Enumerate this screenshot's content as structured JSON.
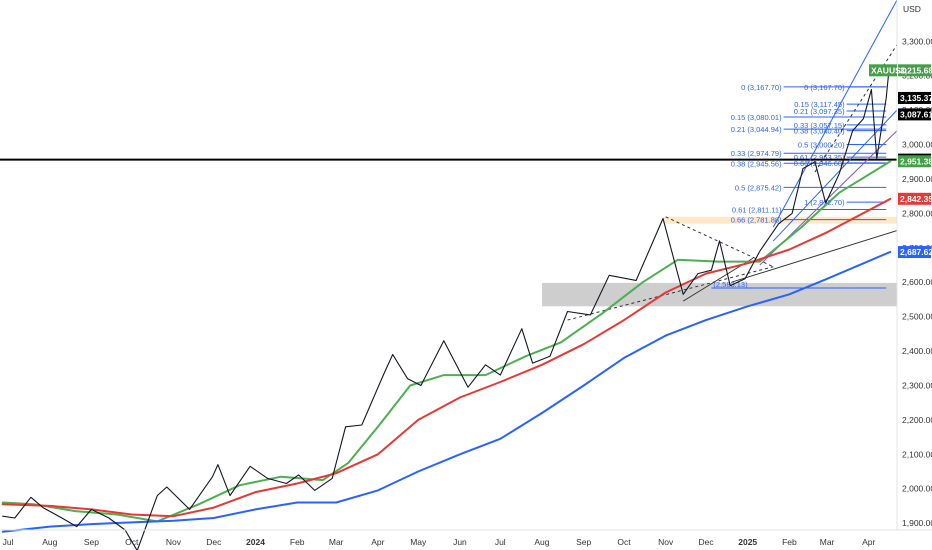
{
  "chart_data": {
    "type": "line",
    "title": "",
    "currency_label": "USD",
    "ylim": [
      1880,
      3420
    ],
    "yticks": [
      1900,
      2000,
      2100,
      2200,
      2300,
      2400,
      2500,
      2600,
      2700,
      2800,
      2900,
      3000,
      3100,
      3200,
      3300
    ],
    "ytick_labels": [
      "1,900.00",
      "2,000.00",
      "2,100.00",
      "2,200.00",
      "2,300.00",
      "2,400.00",
      "2,500.00",
      "2,600.00",
      "2,700.00",
      "2,800.00",
      "2,900.00",
      "3,000.00",
      "3,100.00",
      "3,200.00",
      "3,300.00"
    ],
    "xlim": [
      "2023-06-25",
      "2025-04-22"
    ],
    "xticks": [
      {
        "date": "2023-07-01",
        "label": "Jul",
        "bold": false
      },
      {
        "date": "2023-08-01",
        "label": "Aug",
        "bold": false
      },
      {
        "date": "2023-09-01",
        "label": "Sep",
        "bold": false
      },
      {
        "date": "2023-10-01",
        "label": "Oct",
        "bold": false
      },
      {
        "date": "2023-11-01",
        "label": "Nov",
        "bold": false
      },
      {
        "date": "2023-12-01",
        "label": "Dec",
        "bold": false
      },
      {
        "date": "2024-01-01",
        "label": "2024",
        "bold": true
      },
      {
        "date": "2024-02-01",
        "label": "Feb",
        "bold": false
      },
      {
        "date": "2024-03-01",
        "label": "Mar",
        "bold": false
      },
      {
        "date": "2024-04-01",
        "label": "Apr",
        "bold": false
      },
      {
        "date": "2024-05-01",
        "label": "May",
        "bold": false
      },
      {
        "date": "2024-06-01",
        "label": "Jun",
        "bold": false
      },
      {
        "date": "2024-07-01",
        "label": "Jul",
        "bold": false
      },
      {
        "date": "2024-08-01",
        "label": "Aug",
        "bold": false
      },
      {
        "date": "2024-09-01",
        "label": "Sep",
        "bold": false
      },
      {
        "date": "2024-10-01",
        "label": "Oct",
        "bold": false
      },
      {
        "date": "2024-11-01",
        "label": "Nov",
        "bold": false
      },
      {
        "date": "2024-12-01",
        "label": "Dec",
        "bold": false
      },
      {
        "date": "2025-01-01",
        "label": "2025",
        "bold": true
      },
      {
        "date": "2025-02-01",
        "label": "Feb",
        "bold": false
      },
      {
        "date": "2025-03-01",
        "label": "Mar",
        "bold": false
      },
      {
        "date": "2025-04-01",
        "label": "Apr",
        "bold": false
      }
    ],
    "grid": false,
    "series": [
      {
        "name": "",
        "kind": "price",
        "color": "#131722",
        "points": [
          [
            "2023-06-27",
            1920
          ],
          [
            "2023-07-06",
            1915
          ],
          [
            "2023-07-18",
            1975
          ],
          [
            "2023-07-27",
            1945
          ],
          [
            "2023-08-10",
            1915
          ],
          [
            "2023-08-21",
            1890
          ],
          [
            "2023-09-01",
            1940
          ],
          [
            "2023-09-14",
            1915
          ],
          [
            "2023-09-26",
            1880
          ],
          [
            "2023-10-05",
            1820
          ],
          [
            "2023-10-20",
            1980
          ],
          [
            "2023-10-27",
            2005
          ],
          [
            "2023-11-13",
            1940
          ],
          [
            "2023-11-30",
            2035
          ],
          [
            "2023-12-04",
            2070
          ],
          [
            "2023-12-13",
            1980
          ],
          [
            "2023-12-28",
            2065
          ],
          [
            "2024-01-10",
            2030
          ],
          [
            "2024-01-24",
            2015
          ],
          [
            "2024-02-02",
            2040
          ],
          [
            "2024-02-14",
            1995
          ],
          [
            "2024-02-27",
            2030
          ],
          [
            "2024-03-08",
            2180
          ],
          [
            "2024-03-20",
            2185
          ],
          [
            "2024-04-05",
            2330
          ],
          [
            "2024-04-12",
            2390
          ],
          [
            "2024-04-23",
            2320
          ],
          [
            "2024-05-03",
            2300
          ],
          [
            "2024-05-20",
            2430
          ],
          [
            "2024-06-07",
            2295
          ],
          [
            "2024-06-20",
            2360
          ],
          [
            "2024-07-01",
            2330
          ],
          [
            "2024-07-17",
            2465
          ],
          [
            "2024-07-25",
            2365
          ],
          [
            "2024-08-07",
            2385
          ],
          [
            "2024-08-20",
            2515
          ],
          [
            "2024-09-06",
            2505
          ],
          [
            "2024-09-20",
            2620
          ],
          [
            "2024-10-10",
            2605
          ],
          [
            "2024-10-30",
            2785
          ],
          [
            "2024-11-14",
            2565
          ],
          [
            "2024-11-25",
            2625
          ],
          [
            "2024-12-05",
            2635
          ],
          [
            "2024-12-11",
            2720
          ],
          [
            "2024-12-19",
            2590
          ],
          [
            "2024-12-30",
            2610
          ],
          [
            "2025-01-10",
            2690
          ],
          [
            "2025-01-24",
            2770
          ],
          [
            "2025-02-03",
            2800
          ],
          [
            "2025-02-11",
            2930
          ],
          [
            "2025-02-20",
            2950
          ],
          [
            "2025-02-28",
            2830
          ],
          [
            "2025-03-10",
            2915
          ],
          [
            "2025-03-20",
            3040
          ],
          [
            "2025-03-28",
            3075
          ],
          [
            "2025-04-03",
            3160
          ],
          [
            "2025-04-07",
            2960
          ],
          [
            "2025-04-14",
            3135
          ],
          [
            "2025-04-16",
            3215
          ]
        ]
      },
      {
        "name": "",
        "kind": "ma",
        "color": "#4caf50",
        "points": [
          [
            "2023-06-27",
            1960
          ],
          [
            "2023-07-20",
            1955
          ],
          [
            "2023-08-20",
            1935
          ],
          [
            "2023-09-20",
            1925
          ],
          [
            "2023-10-20",
            1905
          ],
          [
            "2023-11-20",
            1955
          ],
          [
            "2023-12-20",
            2010
          ],
          [
            "2024-01-20",
            2035
          ],
          [
            "2024-02-20",
            2025
          ],
          [
            "2024-03-10",
            2075
          ],
          [
            "2024-04-01",
            2180
          ],
          [
            "2024-04-25",
            2300
          ],
          [
            "2024-05-20",
            2330
          ],
          [
            "2024-06-20",
            2330
          ],
          [
            "2024-07-20",
            2385
          ],
          [
            "2024-08-15",
            2425
          ],
          [
            "2024-09-15",
            2510
          ],
          [
            "2024-10-15",
            2600
          ],
          [
            "2024-11-10",
            2665
          ],
          [
            "2024-12-10",
            2660
          ],
          [
            "2025-01-10",
            2660
          ],
          [
            "2025-02-10",
            2760
          ],
          [
            "2025-03-10",
            2860
          ],
          [
            "2025-04-17",
            2951
          ]
        ]
      },
      {
        "name": "",
        "kind": "ma",
        "color": "#e53935",
        "points": [
          [
            "2023-06-27",
            1955
          ],
          [
            "2023-08-01",
            1950
          ],
          [
            "2023-09-01",
            1940
          ],
          [
            "2023-10-01",
            1925
          ],
          [
            "2023-11-01",
            1920
          ],
          [
            "2023-12-01",
            1945
          ],
          [
            "2024-01-01",
            1990
          ],
          [
            "2024-02-01",
            2015
          ],
          [
            "2024-03-01",
            2045
          ],
          [
            "2024-04-01",
            2100
          ],
          [
            "2024-05-01",
            2200
          ],
          [
            "2024-06-01",
            2265
          ],
          [
            "2024-07-01",
            2310
          ],
          [
            "2024-08-01",
            2360
          ],
          [
            "2024-09-01",
            2420
          ],
          [
            "2024-10-01",
            2490
          ],
          [
            "2024-11-01",
            2570
          ],
          [
            "2024-12-01",
            2625
          ],
          [
            "2025-01-01",
            2655
          ],
          [
            "2025-02-01",
            2695
          ],
          [
            "2025-03-01",
            2745
          ],
          [
            "2025-04-17",
            2842
          ]
        ]
      },
      {
        "name": "",
        "kind": "ma",
        "color": "#2962ff",
        "points": [
          [
            "2023-06-27",
            1875
          ],
          [
            "2023-08-01",
            1890
          ],
          [
            "2023-09-01",
            1897
          ],
          [
            "2023-10-01",
            1902
          ],
          [
            "2023-11-01",
            1907
          ],
          [
            "2023-12-01",
            1915
          ],
          [
            "2024-01-01",
            1940
          ],
          [
            "2024-02-01",
            1960
          ],
          [
            "2024-03-01",
            1960
          ],
          [
            "2024-04-01",
            1995
          ],
          [
            "2024-05-01",
            2050
          ],
          [
            "2024-06-01",
            2100
          ],
          [
            "2024-07-01",
            2145
          ],
          [
            "2024-08-01",
            2220
          ],
          [
            "2024-09-01",
            2300
          ],
          [
            "2024-10-01",
            2380
          ],
          [
            "2024-11-01",
            2445
          ],
          [
            "2024-12-01",
            2490
          ],
          [
            "2025-01-01",
            2530
          ],
          [
            "2025-02-01",
            2565
          ],
          [
            "2025-03-01",
            2610
          ],
          [
            "2025-04-17",
            2688
          ]
        ]
      }
    ],
    "price_badges": [
      {
        "label": "XAUUSD",
        "value": "3,215.68",
        "color": "#43a047"
      },
      {
        "value": "3,135.37",
        "color": "#000000"
      },
      {
        "value": "3,087.61",
        "color": "#000000"
      },
      {
        "value": "2,956.19",
        "color": "#000000"
      },
      {
        "value": "2,951.38",
        "color": "#43a047"
      },
      {
        "value": "2,842.35",
        "color": "#e53935"
      },
      {
        "value": "2,687.62",
        "color": "#2962ff"
      }
    ],
    "horizontal_line": {
      "price": 2956.19,
      "color": "#000000"
    },
    "support_zones": [
      {
        "from": 2530,
        "to": 2598,
        "color": "#bdbdbd"
      },
      {
        "from": 2770,
        "to": 2790,
        "color": "#ffe0b2"
      }
    ],
    "fib_levels_1": {
      "x_from": "2024-12-20",
      "x_to": "2025-04-14",
      "levels": [
        {
          "label": "0 (3,167.70)",
          "price": 3167.7
        },
        {
          "label": "0.15 (3,080.01)",
          "price": 3080.01
        },
        {
          "label": "0.21 (3,044.94)",
          "price": 3044.94
        },
        {
          "label": "0.33 (2,974.79)",
          "price": 2974.79
        },
        {
          "label": "0.38 (2,945.56)",
          "price": 2945.56
        },
        {
          "label": "0.5 (2,875.42)",
          "price": 2875.42
        },
        {
          "label": "0.61 (2,811.11)",
          "price": 2811.11
        },
        {
          "label": "0.66 (2,781.88)",
          "price": 2781.88
        }
      ]
    },
    "fib_levels_2": {
      "x_from": "2025-03-20",
      "x_to": "2025-04-14",
      "levels": [
        {
          "label": "0 (3,167.70)",
          "price": 3167.7
        },
        {
          "label": "0.15 (3,117.45)",
          "price": 3117.45
        },
        {
          "label": "0.21 (3,097.35)",
          "price": 3097.35
        },
        {
          "label": "0.33 (3,057.15)",
          "price": 3057.15
        },
        {
          "label": "0.38 (3,040.40)",
          "price": 3040.4
        },
        {
          "label": "0.5 (3,000.20)",
          "price": 3000.2
        },
        {
          "label": "0.61 (2,963.35)",
          "price": 2963.35
        },
        {
          "label": "0.66 (2,946.60)",
          "price": 2946.6
        },
        {
          "label": "1 (2,832.70)",
          "price": 2832.7
        }
      ]
    },
    "fib_level_3": {
      "label": "(2,583.13)",
      "price": 2583.13,
      "x_from": "2024-12-05",
      "x_to": "2025-04-14"
    },
    "trend_lines": [
      {
        "from": [
          "2025-01-20",
          2760
        ],
        "to": [
          "2025-04-22",
          3420
        ],
        "color": "#2962ff",
        "dash": false
      },
      {
        "from": [
          "2025-01-20",
          2720
        ],
        "to": [
          "2025-04-22",
          3100
        ],
        "color": "#2962ff",
        "dash": false
      },
      {
        "from": [
          "2025-01-10",
          2650
        ],
        "to": [
          "2025-04-22",
          3040
        ],
        "color": "#7e57c2",
        "dash": false
      },
      {
        "from": [
          "2024-12-20",
          2600
        ],
        "to": [
          "2025-04-22",
          2750
        ],
        "color": "#333333",
        "dash": false
      },
      {
        "from": [
          "2025-02-20",
          2920
        ],
        "to": [
          "2025-04-22",
          3290
        ],
        "color": "#333333",
        "dash": true
      },
      {
        "from": [
          "2024-08-20",
          2490
        ],
        "to": [
          "2025-01-20",
          2645
        ],
        "color": "#333333",
        "dash": true
      },
      {
        "from": [
          "2024-11-01",
          2790
        ],
        "to": [
          "2025-01-20",
          2645
        ],
        "color": "#333333",
        "dash": true
      },
      {
        "from": [
          "2024-11-14",
          2545
        ],
        "to": [
          "2025-01-05",
          2670
        ],
        "color": "#333333",
        "dash": false
      }
    ]
  }
}
